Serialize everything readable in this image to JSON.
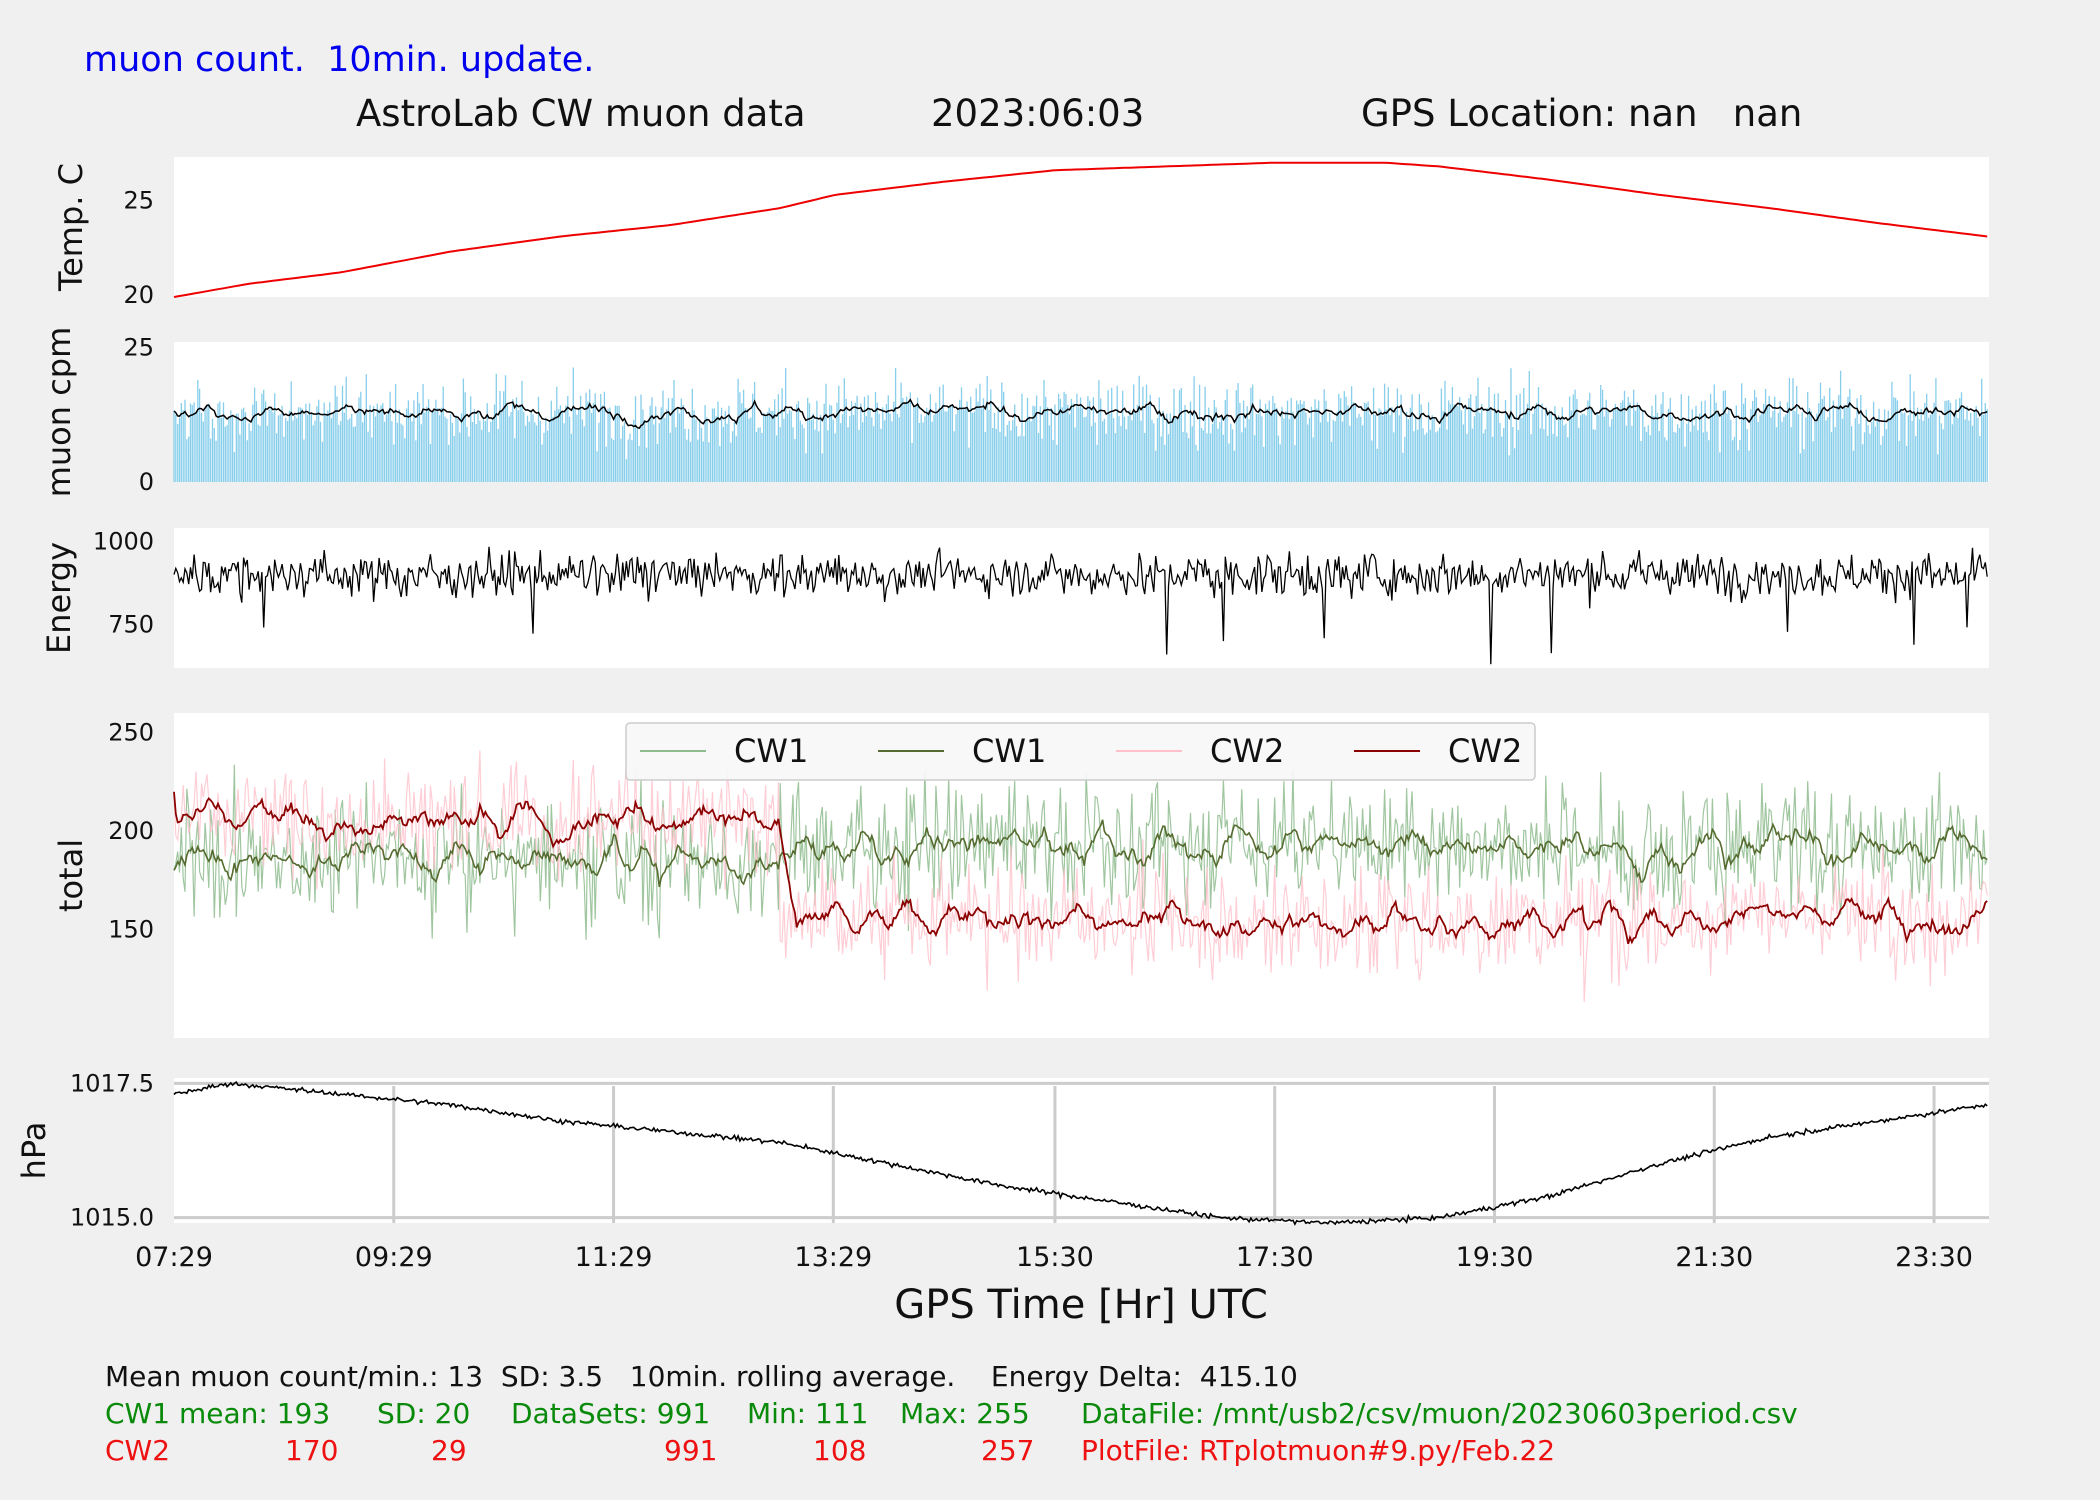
{
  "header": {
    "subtitle": "muon count.  10min. update.",
    "title": "AstroLab CW muon data",
    "date": "2023:06:03",
    "gps": "GPS Location: nan   nan"
  },
  "colors": {
    "background": "#f0f0f0",
    "panel": "#ffffff",
    "temp": "#ee0000",
    "muon_bar": "#87ceeb",
    "muon_avg": "#000000",
    "energy": "#000000",
    "cw1_raw": "#8fbc8f",
    "cw1_avg": "#556b2f",
    "cw2_raw": "#ffc0cb",
    "cw2_avg": "#8b0000",
    "pressure": "#000000",
    "header_blue": "#0000ee",
    "stats_green": "#0a8a0a",
    "stats_red": "#ee1111"
  },
  "chart_data": {
    "type": "line",
    "xlabel": "GPS Time  [Hr] UTC",
    "x_range": [
      "07:29",
      "24:00"
    ],
    "x_ticks": [
      "07:29",
      "09:29",
      "11:29",
      "13:29",
      "15:30",
      "17:30",
      "19:30",
      "21:30",
      "23:30"
    ],
    "data_end": "23:59",
    "panels": [
      {
        "id": "temp",
        "type": "line",
        "ylabel": "Temp. C",
        "ylim": [
          19.9,
          27.3
        ],
        "yticks": [
          20,
          25
        ],
        "series": [
          {
            "color": "#ee0000",
            "points": [
              [
                "07:29",
                19.9
              ],
              [
                "08:10",
                20.6
              ],
              [
                "09:00",
                21.2
              ],
              [
                "10:00",
                22.3
              ],
              [
                "11:00",
                23.1
              ],
              [
                "12:00",
                23.7
              ],
              [
                "13:00",
                24.6
              ],
              [
                "13:30",
                25.3
              ],
              [
                "14:30",
                26.0
              ],
              [
                "15:30",
                26.6
              ],
              [
                "16:30",
                26.8
              ],
              [
                "17:30",
                27.0
              ],
              [
                "18:30",
                27.0
              ],
              [
                "19:00",
                26.8
              ],
              [
                "20:00",
                26.1
              ],
              [
                "21:00",
                25.3
              ],
              [
                "22:00",
                24.6
              ],
              [
                "23:00",
                23.8
              ],
              [
                "23:59",
                23.1
              ]
            ]
          }
        ]
      },
      {
        "id": "muon",
        "type": "bar+line",
        "ylabel": "muon cpm",
        "ylim": [
          0,
          26
        ],
        "yticks": [
          0,
          25
        ],
        "mean": 13,
        "sd": 3.5,
        "rolling": "10min"
      },
      {
        "id": "energy",
        "type": "line",
        "ylabel": "Energy",
        "ylim": [
          620,
          1040
        ],
        "yticks": [
          750,
          1000
        ],
        "mean": 900,
        "noise": 45,
        "spike_min": 630,
        "spike_max": 1035
      },
      {
        "id": "total",
        "type": "line",
        "ylabel": "total",
        "ylim": [
          95,
          260
        ],
        "yticks": [
          150,
          200,
          250
        ],
        "legend": [
          "CW1",
          "CW1",
          "CW2",
          "CW2"
        ],
        "legend_loc": "upper center",
        "cw1": {
          "mean": 193,
          "sd": 20,
          "min": 111,
          "max": 255
        },
        "cw2": {
          "mean": 170,
          "sd": 29,
          "min": 108,
          "max": 257,
          "level_before": 205,
          "level_after": 155,
          "step_time": "13:00"
        }
      },
      {
        "id": "pressure",
        "type": "line",
        "ylabel": "hPa",
        "ylim": [
          1014.9,
          1017.6
        ],
        "yticks": [
          1015.0,
          1017.5
        ],
        "grid": true,
        "series": [
          {
            "color": "#000000",
            "points": [
              [
                "07:29",
                1017.3
              ],
              [
                "08:00",
                1017.5
              ],
              [
                "09:00",
                1017.3
              ],
              [
                "10:00",
                1017.1
              ],
              [
                "11:00",
                1016.8
              ],
              [
                "12:00",
                1016.6
              ],
              [
                "13:00",
                1016.4
              ],
              [
                "14:00",
                1016.0
              ],
              [
                "15:00",
                1015.6
              ],
              [
                "16:00",
                1015.3
              ],
              [
                "17:00",
                1015.0
              ],
              [
                "18:00",
                1014.9
              ],
              [
                "19:00",
                1015.0
              ],
              [
                "20:00",
                1015.4
              ],
              [
                "21:00",
                1016.0
              ],
              [
                "22:00",
                1016.5
              ],
              [
                "23:00",
                1016.8
              ],
              [
                "23:59",
                1017.1
              ]
            ]
          }
        ]
      }
    ]
  },
  "stats": {
    "line1": "Mean muon count/min.: 13  SD: 3.5   10min. rolling average.    Energy Delta:  415.10",
    "cw1_label": "CW1 mean: 193",
    "cw1_sd": "SD: 20",
    "cw1_datasets": "DataSets: 991",
    "cw1_min": "Min: 111",
    "cw1_max": "Max: 255",
    "datafile": "DataFile: /mnt/usb2/csv/muon/20230603period.csv",
    "cw2_label": "CW2",
    "cw2_mean": "170",
    "cw2_sd": "29",
    "cw2_datasets": "991",
    "cw2_min": "108",
    "cw2_max": "257",
    "plotfile": "PlotFile: RTplotmuon#9.py/Feb.22"
  }
}
